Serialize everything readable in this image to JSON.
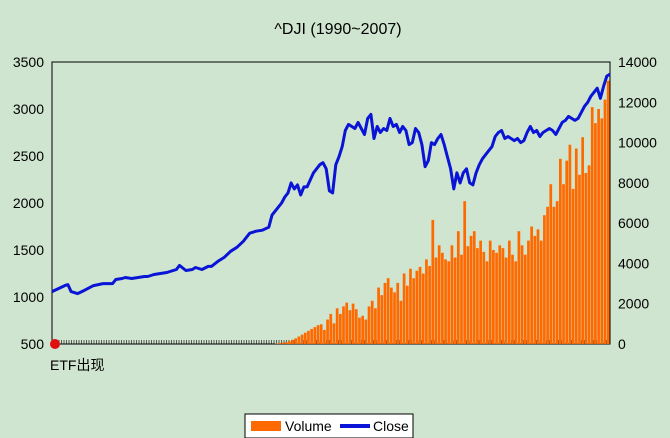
{
  "chart_data": {
    "type": "bar+line",
    "title": "^DJI (1990~2007)",
    "annotation": "ETF出现",
    "y_left": {
      "min": 500,
      "max": 3500,
      "ticks": [
        "3500",
        "3000",
        "2500",
        "2000",
        "1500",
        "1000",
        "500"
      ]
    },
    "y_right": {
      "min": 0,
      "max": 14000,
      "ticks": [
        "14000",
        "12000",
        "10000",
        "8000",
        "6000",
        "4000",
        "2000",
        "0"
      ]
    },
    "x_range": [
      1990.0,
      2007.0
    ],
    "colors": {
      "volume": "#ff6a00",
      "close": "#0a14d6",
      "background": "#cfe5cf",
      "plot_bg": "#cfe5cf",
      "marker": "#e01010"
    },
    "series": [
      {
        "name": "Volume",
        "axis": "left",
        "kind": "bar",
        "points": [
          [
            1997.0,
            505
          ],
          [
            1997.1,
            510
          ],
          [
            1997.2,
            515
          ],
          [
            1997.3,
            520
          ],
          [
            1997.4,
            530
          ],
          [
            1997.5,
            545
          ],
          [
            1997.6,
            560
          ],
          [
            1997.7,
            580
          ],
          [
            1997.8,
            600
          ],
          [
            1997.9,
            620
          ],
          [
            1998.0,
            640
          ],
          [
            1998.1,
            660
          ],
          [
            1998.2,
            680
          ],
          [
            1998.3,
            700
          ],
          [
            1998.4,
            710
          ],
          [
            1998.5,
            650
          ],
          [
            1998.6,
            760
          ],
          [
            1998.7,
            820
          ],
          [
            1998.8,
            720
          ],
          [
            1998.9,
            880
          ],
          [
            1999.0,
            820
          ],
          [
            1999.1,
            900
          ],
          [
            1999.2,
            940
          ],
          [
            1999.3,
            860
          ],
          [
            1999.4,
            930
          ],
          [
            1999.5,
            870
          ],
          [
            1999.6,
            780
          ],
          [
            1999.7,
            800
          ],
          [
            1999.8,
            760
          ],
          [
            1999.9,
            900
          ],
          [
            2000.0,
            960
          ],
          [
            2000.1,
            880
          ],
          [
            2000.2,
            1100
          ],
          [
            2000.3,
            1020
          ],
          [
            2000.4,
            1150
          ],
          [
            2000.5,
            1200
          ],
          [
            2000.6,
            1100
          ],
          [
            2000.7,
            1050
          ],
          [
            2000.8,
            1150
          ],
          [
            2000.9,
            960
          ],
          [
            2001.0,
            1250
          ],
          [
            2001.1,
            1120
          ],
          [
            2001.2,
            1300
          ],
          [
            2001.3,
            1200
          ],
          [
            2001.4,
            1280
          ],
          [
            2001.5,
            1320
          ],
          [
            2001.6,
            1250
          ],
          [
            2001.7,
            1400
          ],
          [
            2001.8,
            1330
          ],
          [
            2001.9,
            1820
          ],
          [
            2002.0,
            1420
          ],
          [
            2002.1,
            1550
          ],
          [
            2002.2,
            1470
          ],
          [
            2002.3,
            1400
          ],
          [
            2002.4,
            1380
          ],
          [
            2002.5,
            1550
          ],
          [
            2002.6,
            1420
          ],
          [
            2002.7,
            1700
          ],
          [
            2002.8,
            1450
          ],
          [
            2002.9,
            2020
          ],
          [
            2003.0,
            1540
          ],
          [
            2003.1,
            1650
          ],
          [
            2003.2,
            1700
          ],
          [
            2003.3,
            1520
          ],
          [
            2003.4,
            1600
          ],
          [
            2003.5,
            1480
          ],
          [
            2003.6,
            1380
          ],
          [
            2003.7,
            1600
          ],
          [
            2003.8,
            1500
          ],
          [
            2003.9,
            1470
          ],
          [
            2004.0,
            1550
          ],
          [
            2004.1,
            1520
          ],
          [
            2004.2,
            1420
          ],
          [
            2004.3,
            1600
          ],
          [
            2004.4,
            1450
          ],
          [
            2004.5,
            1380
          ],
          [
            2004.6,
            1700
          ],
          [
            2004.7,
            1550
          ],
          [
            2004.8,
            1450
          ],
          [
            2004.9,
            1600
          ],
          [
            2005.0,
            1750
          ],
          [
            2005.1,
            1650
          ],
          [
            2005.2,
            1720
          ],
          [
            2005.3,
            1600
          ],
          [
            2005.4,
            1870
          ],
          [
            2005.5,
            1960
          ],
          [
            2005.6,
            2200
          ],
          [
            2005.7,
            1960
          ],
          [
            2005.8,
            2020
          ],
          [
            2005.9,
            2470
          ],
          [
            2006.0,
            2200
          ],
          [
            2006.1,
            2450
          ],
          [
            2006.2,
            2620
          ],
          [
            2006.3,
            2150
          ],
          [
            2006.4,
            2580
          ],
          [
            2006.5,
            2300
          ],
          [
            2006.6,
            2700
          ],
          [
            2006.7,
            2320
          ],
          [
            2006.8,
            2400
          ],
          [
            2006.9,
            3020
          ],
          [
            2007.0,
            2850
          ],
          [
            2007.1,
            3000
          ],
          [
            2007.2,
            2900
          ],
          [
            2007.3,
            3100
          ],
          [
            2007.4,
            3300
          ]
        ]
      },
      {
        "name": "Close",
        "axis": "right",
        "kind": "line",
        "points": [
          [
            1990.0,
            2600
          ],
          [
            1990.2,
            2750
          ],
          [
            1990.4,
            2900
          ],
          [
            1990.5,
            2950
          ],
          [
            1990.6,
            2600
          ],
          [
            1990.8,
            2500
          ],
          [
            1991.0,
            2650
          ],
          [
            1991.3,
            2900
          ],
          [
            1991.6,
            3000
          ],
          [
            1991.9,
            3000
          ],
          [
            1992.0,
            3200
          ],
          [
            1992.2,
            3250
          ],
          [
            1992.3,
            3300
          ],
          [
            1992.5,
            3250
          ],
          [
            1992.7,
            3300
          ],
          [
            1992.9,
            3350
          ],
          [
            1993.0,
            3350
          ],
          [
            1993.2,
            3450
          ],
          [
            1993.4,
            3500
          ],
          [
            1993.6,
            3550
          ],
          [
            1993.8,
            3650
          ],
          [
            1993.9,
            3700
          ],
          [
            1994.0,
            3900
          ],
          [
            1994.2,
            3650
          ],
          [
            1994.4,
            3700
          ],
          [
            1994.5,
            3800
          ],
          [
            1994.7,
            3700
          ],
          [
            1994.9,
            3850
          ],
          [
            1995.0,
            3850
          ],
          [
            1995.2,
            4100
          ],
          [
            1995.4,
            4300
          ],
          [
            1995.6,
            4600
          ],
          [
            1995.8,
            4800
          ],
          [
            1996.0,
            5100
          ],
          [
            1996.2,
            5500
          ],
          [
            1996.4,
            5600
          ],
          [
            1996.6,
            5650
          ],
          [
            1996.8,
            5800
          ],
          [
            1996.9,
            6400
          ],
          [
            1997.0,
            6600
          ],
          [
            1997.2,
            7000
          ],
          [
            1997.3,
            7300
          ],
          [
            1997.4,
            7500
          ],
          [
            1997.5,
            8000
          ],
          [
            1997.6,
            7700
          ],
          [
            1997.7,
            7900
          ],
          [
            1997.8,
            7400
          ],
          [
            1997.9,
            7800
          ],
          [
            1998.0,
            7800
          ],
          [
            1998.2,
            8500
          ],
          [
            1998.4,
            8900
          ],
          [
            1998.5,
            9000
          ],
          [
            1998.6,
            8700
          ],
          [
            1998.7,
            7600
          ],
          [
            1998.8,
            7500
          ],
          [
            1998.9,
            8900
          ],
          [
            1999.0,
            9300
          ],
          [
            1999.1,
            9800
          ],
          [
            1999.2,
            10600
          ],
          [
            1999.3,
            10900
          ],
          [
            1999.5,
            10700
          ],
          [
            1999.6,
            11000
          ],
          [
            1999.7,
            10700
          ],
          [
            1999.8,
            10400
          ],
          [
            1999.9,
            11200
          ],
          [
            2000.0,
            11400
          ],
          [
            2000.1,
            10200
          ],
          [
            2000.2,
            10800
          ],
          [
            2000.3,
            10500
          ],
          [
            2000.4,
            10700
          ],
          [
            2000.5,
            10600
          ],
          [
            2000.6,
            11200
          ],
          [
            2000.7,
            10800
          ],
          [
            2000.8,
            10900
          ],
          [
            2000.9,
            10500
          ],
          [
            2001.0,
            10800
          ],
          [
            2001.1,
            10600
          ],
          [
            2001.2,
            9900
          ],
          [
            2001.3,
            10000
          ],
          [
            2001.4,
            10700
          ],
          [
            2001.5,
            10500
          ],
          [
            2001.6,
            9900
          ],
          [
            2001.7,
            8800
          ],
          [
            2001.8,
            9100
          ],
          [
            2001.9,
            10000
          ],
          [
            2002.0,
            9900
          ],
          [
            2002.1,
            10200
          ],
          [
            2002.2,
            10400
          ],
          [
            2002.3,
            9900
          ],
          [
            2002.4,
            9300
          ],
          [
            2002.5,
            8700
          ],
          [
            2002.6,
            7700
          ],
          [
            2002.7,
            8500
          ],
          [
            2002.8,
            8000
          ],
          [
            2002.9,
            8500
          ],
          [
            2003.0,
            8700
          ],
          [
            2003.1,
            8000
          ],
          [
            2003.2,
            7900
          ],
          [
            2003.3,
            8500
          ],
          [
            2003.4,
            8900
          ],
          [
            2003.5,
            9200
          ],
          [
            2003.6,
            9400
          ],
          [
            2003.7,
            9600
          ],
          [
            2003.8,
            9800
          ],
          [
            2003.9,
            10300
          ],
          [
            2004.0,
            10500
          ],
          [
            2004.1,
            10600
          ],
          [
            2004.2,
            10200
          ],
          [
            2004.3,
            10300
          ],
          [
            2004.5,
            10100
          ],
          [
            2004.6,
            10200
          ],
          [
            2004.7,
            10000
          ],
          [
            2004.8,
            10100
          ],
          [
            2004.9,
            10500
          ],
          [
            2005.0,
            10800
          ],
          [
            2005.1,
            10500
          ],
          [
            2005.2,
            10600
          ],
          [
            2005.3,
            10300
          ],
          [
            2005.4,
            10500
          ],
          [
            2005.5,
            10600
          ],
          [
            2005.6,
            10700
          ],
          [
            2005.7,
            10600
          ],
          [
            2005.8,
            10400
          ],
          [
            2005.9,
            10700
          ],
          [
            2006.0,
            11000
          ],
          [
            2006.1,
            11100
          ],
          [
            2006.2,
            11300
          ],
          [
            2006.3,
            11200
          ],
          [
            2006.4,
            11100
          ],
          [
            2006.5,
            11200
          ],
          [
            2006.6,
            11500
          ],
          [
            2006.7,
            11800
          ],
          [
            2006.8,
            12000
          ],
          [
            2006.9,
            12300
          ],
          [
            2007.0,
            12500
          ],
          [
            2007.1,
            12700
          ],
          [
            2007.2,
            12200
          ],
          [
            2007.3,
            12800
          ],
          [
            2007.4,
            13300
          ],
          [
            2007.5,
            13400
          ]
        ]
      }
    ],
    "legend": {
      "placement": "bottom-center"
    }
  }
}
